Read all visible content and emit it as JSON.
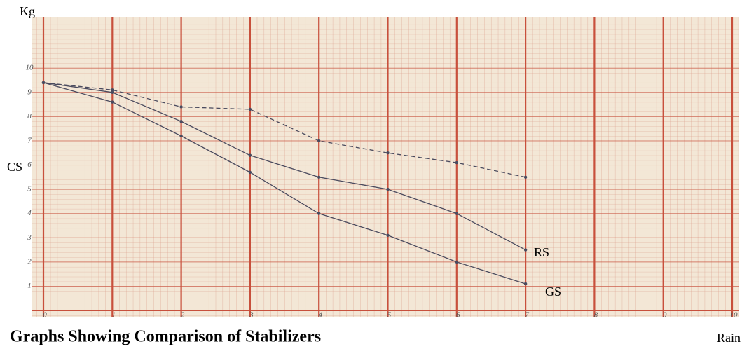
{
  "chart_data": {
    "type": "line",
    "title": "Graphs Showing Comparison of Stabilizers",
    "y_label": "Kg",
    "x_label": "Rain",
    "x": [
      0,
      1,
      2,
      3,
      4,
      5,
      6,
      7
    ],
    "series": [
      {
        "name": "CS",
        "color": "#4a4a5e",
        "dashed": true,
        "values": [
          9.4,
          9.1,
          8.4,
          8.3,
          7.0,
          6.5,
          6.1,
          5.5
        ]
      },
      {
        "name": "RS",
        "color": "#4a4a5e",
        "dashed": false,
        "values": [
          9.4,
          9.0,
          7.8,
          6.4,
          5.5,
          5.0,
          4.0,
          2.5
        ]
      },
      {
        "name": "GS",
        "color": "#4a4a5e",
        "dashed": false,
        "values": [
          9.4,
          8.6,
          7.2,
          5.7,
          4.0,
          3.1,
          2.0,
          1.1
        ]
      }
    ],
    "xlim": [
      0,
      10
    ],
    "xticks": [
      0,
      1,
      2,
      3,
      4,
      5,
      6,
      7,
      8,
      9,
      10
    ],
    "ylim": [
      0,
      12
    ],
    "yticks": [
      1,
      2,
      3,
      4,
      5,
      6,
      7,
      8,
      9,
      10
    ],
    "grid": true,
    "grid_color": "#c8503c"
  }
}
